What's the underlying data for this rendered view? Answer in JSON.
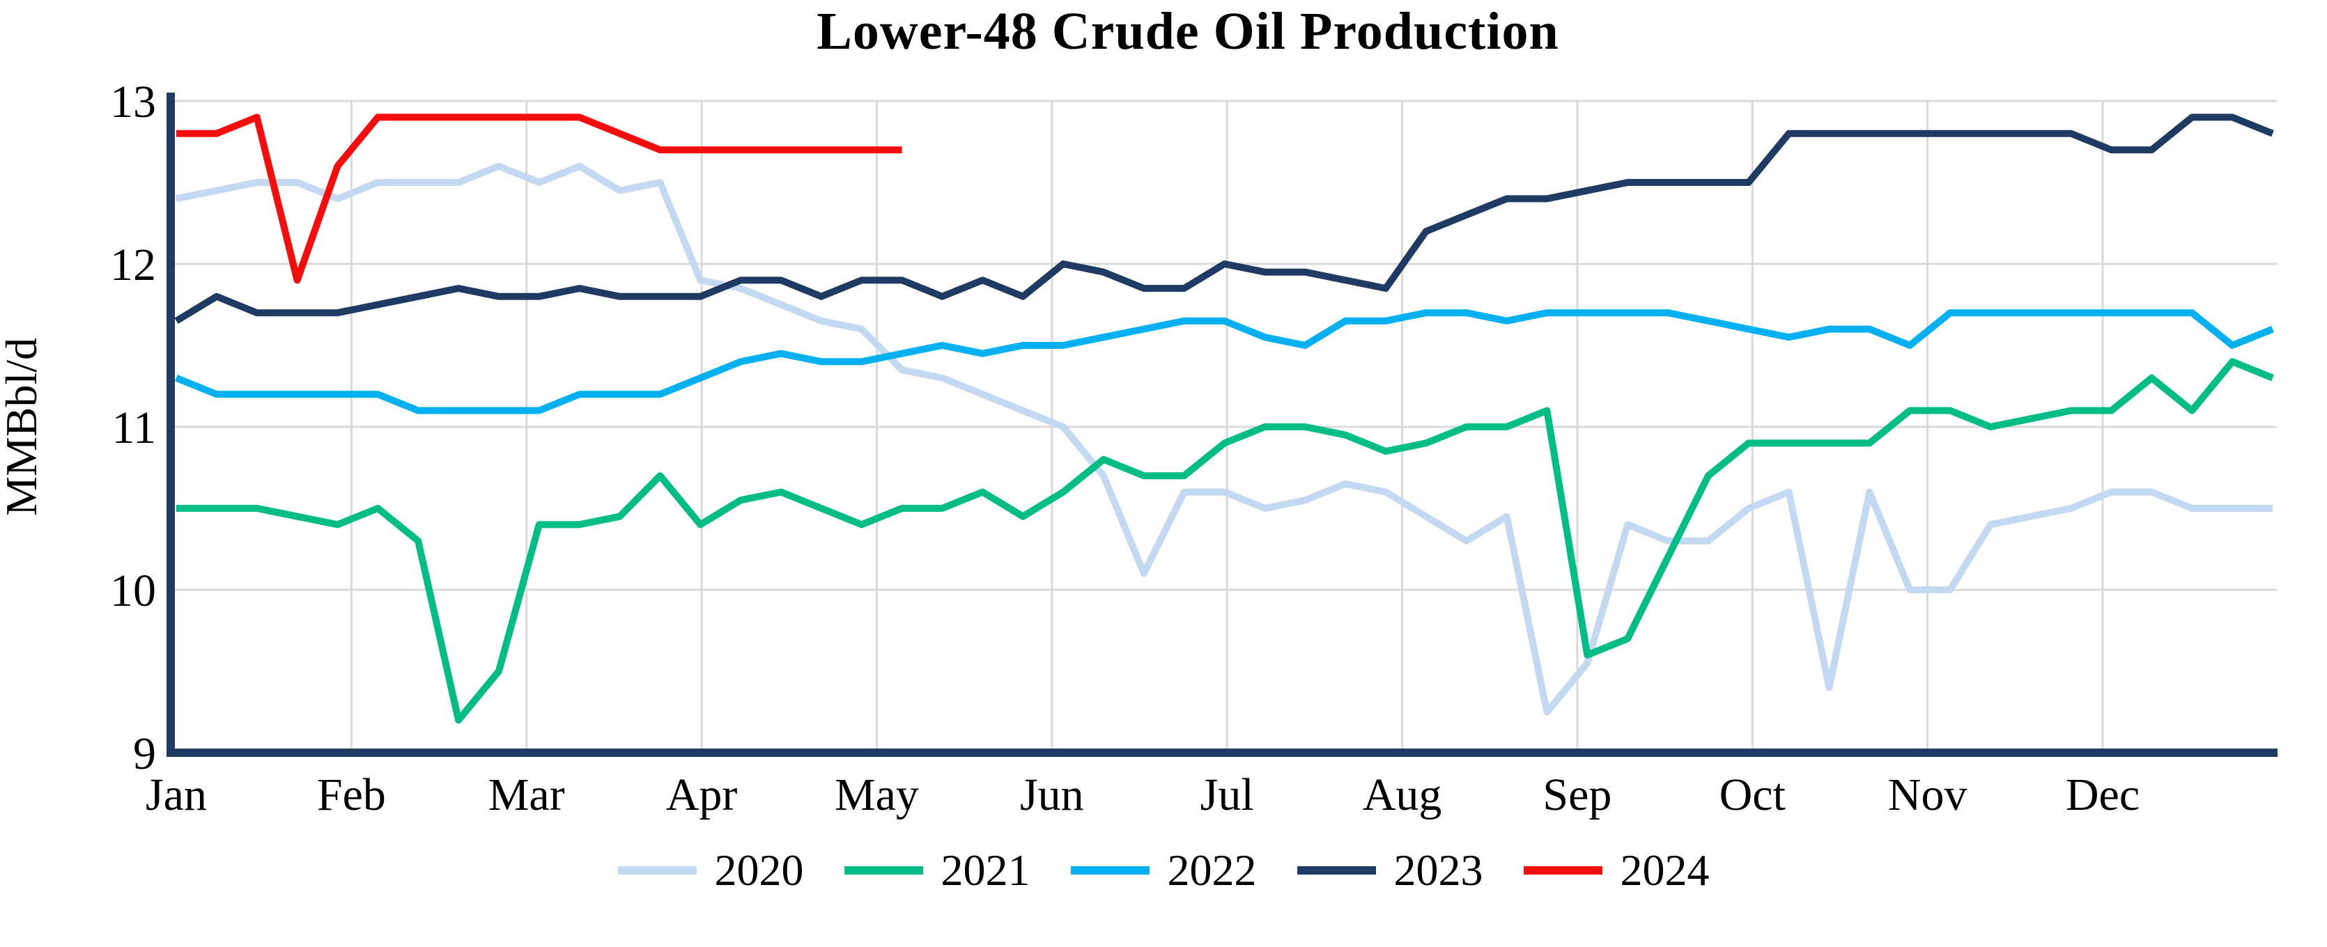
{
  "chart_data": {
    "type": "line",
    "title": "Lower-48 Crude Oil Production",
    "ylabel": "MMBbl/d",
    "xlabel": "",
    "x_tick_labels": [
      "Jan",
      "Feb",
      "Mar",
      "Apr",
      "May",
      "Jun",
      "Jul",
      "Aug",
      "Sep",
      "Oct",
      "Nov",
      "Dec"
    ],
    "x_unit": "weekly",
    "points_per_series": 53,
    "ylim": [
      9,
      13
    ],
    "y_ticks": [
      9,
      10,
      11,
      12,
      13
    ],
    "grid": true,
    "legend_position": "bottom",
    "axis_color": "#1f3a63",
    "gridline_color": "#d9d9d9",
    "text_color": "#000000",
    "series": [
      {
        "name": "2020",
        "color": "#c3d9f1",
        "values": [
          12.4,
          12.45,
          12.5,
          12.5,
          12.4,
          12.5,
          12.5,
          12.5,
          12.6,
          12.5,
          12.6,
          12.45,
          12.5,
          11.9,
          11.85,
          11.75,
          11.65,
          11.6,
          11.35,
          11.3,
          11.2,
          11.1,
          11.0,
          10.7,
          10.1,
          10.6,
          10.6,
          10.5,
          10.55,
          10.65,
          10.6,
          10.45,
          10.3,
          10.45,
          9.25,
          9.55,
          10.4,
          10.3,
          10.3,
          10.5,
          10.6,
          9.4,
          10.6,
          10.0,
          10.0,
          10.4,
          10.45,
          10.5,
          10.6,
          10.6,
          10.5,
          10.5,
          10.5
        ]
      },
      {
        "name": "2021",
        "color": "#00bd85",
        "values": [
          10.5,
          10.5,
          10.5,
          10.45,
          10.4,
          10.5,
          10.3,
          9.2,
          9.5,
          10.4,
          10.4,
          10.45,
          10.7,
          10.4,
          10.55,
          10.6,
          10.5,
          10.4,
          10.5,
          10.5,
          10.6,
          10.45,
          10.6,
          10.8,
          10.7,
          10.7,
          10.9,
          11.0,
          11.0,
          10.95,
          10.85,
          10.9,
          11.0,
          11.0,
          11.1,
          9.6,
          9.7,
          10.2,
          10.7,
          10.9,
          10.9,
          10.9,
          10.9,
          11.1,
          11.1,
          11.0,
          11.05,
          11.1,
          11.1,
          11.3,
          11.1,
          11.4,
          11.3
        ]
      },
      {
        "name": "2022",
        "color": "#00b0f0",
        "values": [
          11.3,
          11.2,
          11.2,
          11.2,
          11.2,
          11.2,
          11.1,
          11.1,
          11.1,
          11.1,
          11.2,
          11.2,
          11.2,
          11.3,
          11.4,
          11.45,
          11.4,
          11.4,
          11.45,
          11.5,
          11.45,
          11.5,
          11.5,
          11.55,
          11.6,
          11.65,
          11.65,
          11.55,
          11.5,
          11.65,
          11.65,
          11.7,
          11.7,
          11.65,
          11.7,
          11.7,
          11.7,
          11.7,
          11.65,
          11.6,
          11.55,
          11.6,
          11.6,
          11.5,
          11.7,
          11.7,
          11.7,
          11.7,
          11.7,
          11.7,
          11.7,
          11.5,
          11.6
        ]
      },
      {
        "name": "2023",
        "color": "#1f3a63",
        "values": [
          11.65,
          11.8,
          11.7,
          11.7,
          11.7,
          11.75,
          11.8,
          11.85,
          11.8,
          11.8,
          11.85,
          11.8,
          11.8,
          11.8,
          11.9,
          11.9,
          11.8,
          11.9,
          11.9,
          11.8,
          11.9,
          11.8,
          12.0,
          11.95,
          11.85,
          11.85,
          12.0,
          11.95,
          11.95,
          11.9,
          11.85,
          12.2,
          12.3,
          12.4,
          12.4,
          12.45,
          12.5,
          12.5,
          12.5,
          12.5,
          12.8,
          12.8,
          12.8,
          12.8,
          12.8,
          12.8,
          12.8,
          12.8,
          12.7,
          12.7,
          12.9,
          12.9,
          12.8
        ]
      },
      {
        "name": "2024",
        "color": "#f50d0d",
        "values": [
          12.8,
          12.8,
          12.9,
          11.9,
          12.6,
          12.9,
          12.9,
          12.9,
          12.9,
          12.9,
          12.9,
          12.8,
          12.7,
          12.7,
          12.7,
          12.7,
          12.7,
          12.7,
          12.7
        ]
      }
    ]
  }
}
